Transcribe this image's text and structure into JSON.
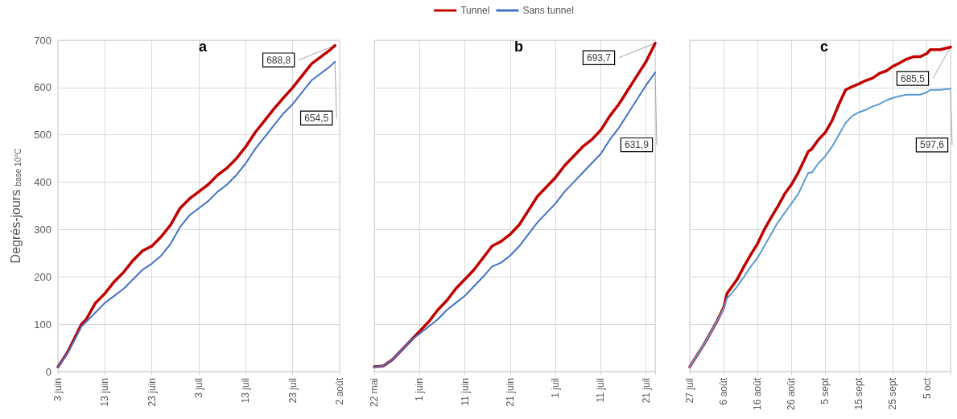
{
  "chart_data": [
    {
      "type": "line",
      "title": "a",
      "ylabel": "Degrés-jours $_{base 10°C}$",
      "legend": false,
      "grid": true,
      "marker": "none",
      "line_style": "solid",
      "x": [
        "--06-03",
        "--06-05",
        "--06-07",
        "--06-08",
        "--06-09",
        "--06-11",
        "--06-13",
        "--06-15",
        "--06-17",
        "--06-19",
        "--06-21",
        "--06-23",
        "--06-25",
        "--06-27",
        "--06-29",
        "--07-01",
        "--07-03",
        "--07-05",
        "--07-07",
        "--07-09",
        "--07-11",
        "--07-13",
        "--07-15",
        "--07-17",
        "--07-19",
        "--07-21",
        "--07-23",
        "--07-25",
        "--07-27",
        "--07-29",
        "--07-31",
        "--08-01"
      ],
      "series": [
        {
          "color": "#c00000",
          "values": [
            10,
            40,
            80,
            100,
            110,
            145,
            165,
            190,
            210,
            235,
            255,
            265,
            285,
            310,
            345,
            365,
            380,
            395,
            415,
            430,
            450,
            475,
            505,
            530,
            555,
            578,
            600,
            625,
            650,
            665,
            680,
            688.8
          ]
        },
        {
          "color": "#4472c4",
          "values": [
            10,
            38,
            75,
            95,
            105,
            125,
            145,
            160,
            175,
            195,
            215,
            228,
            245,
            270,
            305,
            330,
            345,
            360,
            380,
            395,
            415,
            440,
            470,
            495,
            520,
            545,
            565,
            590,
            615,
            630,
            645,
            654.5
          ]
        }
      ],
      "annotations": [
        {
          "text": "688,8",
          "x": "--08-01",
          "y": 688.8
        },
        {
          "text": "654,5",
          "x": "--08-01",
          "y": 654.5
        }
      ],
      "xlim": [
        "--06-03",
        "--08-02"
      ],
      "xticks": [
        {
          "value": "--06-03",
          "label": "3 juin"
        },
        {
          "value": "--06-13",
          "label": "13 juin"
        },
        {
          "value": "--06-23",
          "label": "23 juin"
        },
        {
          "value": "--07-03",
          "label": "3 juil"
        },
        {
          "value": "--07-13",
          "label": "13 juil"
        },
        {
          "value": "--07-23",
          "label": "23 juil"
        },
        {
          "value": "--08-02",
          "label": "2 août"
        }
      ],
      "ylim": [
        0,
        700
      ],
      "yticks": [
        0,
        100,
        200,
        300,
        400,
        500,
        600,
        700
      ]
    },
    {
      "type": "line",
      "title": "b",
      "legend": "top",
      "grid": true,
      "marker": "none",
      "line_style": "solid",
      "tick_labels": "x",
      "x": [
        "--05-22",
        "--05-24",
        "--05-26",
        "--05-28",
        "--05-30",
        "--06-01",
        "--06-03",
        "--06-05",
        "--06-07",
        "--06-09",
        "--06-11",
        "--06-13",
        "--06-15",
        "--06-17",
        "--06-19",
        "--06-21",
        "--06-23",
        "--06-25",
        "--06-27",
        "--06-29",
        "--07-01",
        "--07-03",
        "--07-05",
        "--07-07",
        "--07-09",
        "--07-11",
        "--07-13",
        "--07-15",
        "--07-17",
        "--07-19",
        "--07-21",
        "--07-23"
      ],
      "series": [
        {
          "name": "Tunnel",
          "color": "#c00000",
          "values": [
            10,
            12,
            25,
            45,
            65,
            85,
            105,
            130,
            150,
            175,
            195,
            215,
            240,
            265,
            275,
            290,
            310,
            340,
            370,
            390,
            410,
            435,
            455,
            475,
            490,
            510,
            540,
            565,
            595,
            625,
            655,
            693.7
          ]
        },
        {
          "name": "Sans tunnel",
          "color": "#4472c4",
          "values": [
            10,
            12,
            25,
            45,
            65,
            80,
            95,
            110,
            130,
            145,
            160,
            180,
            200,
            222,
            230,
            245,
            265,
            290,
            315,
            335,
            355,
            380,
            400,
            420,
            440,
            460,
            490,
            515,
            545,
            575,
            605,
            631.9
          ]
        }
      ],
      "annotations": [
        {
          "text": "693,7",
          "x": "--07-23",
          "y": 693.7
        },
        {
          "text": "631,9",
          "x": "--07-23",
          "y": 631.9
        }
      ],
      "xlim": [
        "--05-22",
        "--07-23"
      ],
      "xticks": [
        {
          "value": "--05-22",
          "label": "22 mai"
        },
        {
          "value": "--06-01",
          "label": "1 juin"
        },
        {
          "value": "--06-11",
          "label": "11 juin"
        },
        {
          "value": "--06-21",
          "label": "21 juin"
        },
        {
          "value": "--07-01",
          "label": "1 juil"
        },
        {
          "value": "--07-11",
          "label": "11 juil"
        },
        {
          "value": "--07-21",
          "label": "21 juil"
        }
      ],
      "ylim": [
        0,
        700
      ],
      "yticks": [
        0,
        100,
        200,
        300,
        400,
        500,
        600,
        700
      ]
    },
    {
      "type": "line",
      "title": "c",
      "legend": false,
      "grid": true,
      "marker": "none",
      "line_style": "solid",
      "tick_labels": "x",
      "x": [
        "--07-27",
        "--07-29",
        "--07-31",
        "--08-02",
        "--08-04",
        "--08-06",
        "--08-07",
        "--08-08",
        "--08-10",
        "--08-12",
        "--08-14",
        "--08-16",
        "--08-18",
        "--08-20",
        "--08-22",
        "--08-24",
        "--08-26",
        "--08-28",
        "--08-30",
        "--08-31",
        "--09-01",
        "--09-03",
        "--09-05",
        "--09-07",
        "--09-09",
        "--09-11",
        "--09-13",
        "--09-15",
        "--09-17",
        "--09-19",
        "--09-21",
        "--09-23",
        "--09-25",
        "--09-27",
        "--09-29",
        "--10-01",
        "--10-03",
        "--10-05",
        "--10-06",
        "--10-09",
        "--10-12"
      ],
      "series": [
        {
          "color": "#c00000",
          "values": [
            10,
            33,
            55,
            80,
            106,
            135,
            165,
            175,
            195,
            222,
            247,
            270,
            300,
            325,
            349,
            375,
            395,
            420,
            450,
            465,
            470,
            490,
            505,
            530,
            564,
            595,
            602,
            608,
            615,
            620,
            630,
            635,
            645,
            652,
            660,
            665,
            665,
            672,
            680,
            680,
            685.5
          ]
        },
        {
          "color": "#5b9bd5",
          "values": [
            10,
            33,
            55,
            80,
            106,
            133,
            155,
            162,
            180,
            200,
            222,
            240,
            265,
            290,
            315,
            335,
            355,
            375,
            405,
            420,
            420,
            440,
            455,
            475,
            500,
            525,
            540,
            548,
            553,
            560,
            565,
            573,
            578,
            582,
            585,
            585,
            585,
            590,
            595,
            595,
            597.6
          ]
        }
      ],
      "annotations": [
        {
          "text": "685,5",
          "x": "--10-12",
          "y": 685.5
        },
        {
          "text": "597,6",
          "x": "--10-12",
          "y": 597.6
        }
      ],
      "xlim": [
        "--07-27",
        "--10-12"
      ],
      "xticks": [
        {
          "value": "--07-27",
          "label": "27 juil"
        },
        {
          "value": "--08-06",
          "label": "6 août"
        },
        {
          "value": "--08-16",
          "label": "16 août"
        },
        {
          "value": "--08-26",
          "label": "26 août"
        },
        {
          "value": "--09-05",
          "label": "5 sept"
        },
        {
          "value": "--09-15",
          "label": "15 sept"
        },
        {
          "value": "--09-25",
          "label": "25 sept"
        },
        {
          "value": "--10-05",
          "label": "5 oct"
        }
      ],
      "ylim": [
        0,
        700
      ],
      "yticks": [
        0,
        100,
        200,
        300,
        400,
        500,
        600,
        700
      ]
    }
  ]
}
